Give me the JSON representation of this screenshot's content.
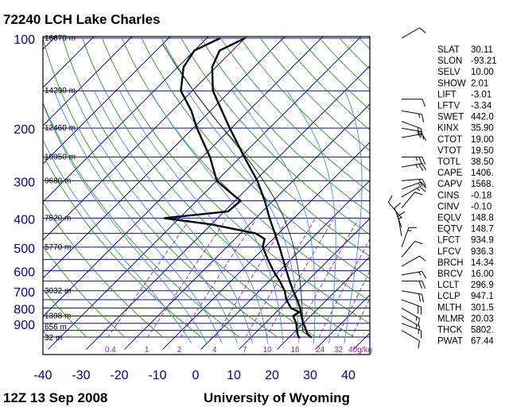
{
  "header": {
    "title": "72240 LCH Lake Charles",
    "date": "12Z 13 Sep 2008",
    "source": "University of Wyoming"
  },
  "colors": {
    "isobar": "#0b0b8c",
    "isotherm": "#0b0b8c",
    "dry_adiabat": "#2a9a2a",
    "moist_adiabat": "#4a8acf",
    "mixing_ratio": "#a020a0",
    "sounding": "#000000",
    "parcel": "#000000",
    "axis_text": "#00008b"
  },
  "chart_data": {
    "type": "skew-t",
    "pressure_ticks": [
      100,
      200,
      300,
      400,
      500,
      600,
      700,
      800,
      900
    ],
    "temperature_ticks": [
      -40,
      -30,
      -20,
      -10,
      0,
      10,
      20,
      30,
      40
    ],
    "xlim": [
      -40,
      45
    ],
    "plim": [
      100,
      1005
    ],
    "height_labels": [
      {
        "p": 100,
        "text": "16670 m"
      },
      {
        "p": 150,
        "text": "14290 m"
      },
      {
        "p": 200,
        "text": "12460 m"
      },
      {
        "p": 250,
        "text": "10950 m"
      },
      {
        "p": 300,
        "text": "9680 m"
      },
      {
        "p": 400,
        "text": "7520 m"
      },
      {
        "p": 500,
        "text": "5770 m"
      },
      {
        "p": 700,
        "text": "3032 m"
      },
      {
        "p": 850,
        "text": "1398 m"
      },
      {
        "p": 925,
        "text": "656 m"
      },
      {
        "p": 1005,
        "text": "32 m"
      }
    ],
    "mixing_ratio_labels": [
      "0.4",
      "1",
      "2",
      "4",
      "7",
      "10",
      "16",
      "24",
      "32",
      "40g/kg"
    ],
    "mixing_ratio_values": [
      0.4,
      1,
      2,
      4,
      7,
      10,
      16,
      24,
      32,
      40
    ],
    "temperature": [
      {
        "p": 1005,
        "t": 26.0
      },
      {
        "p": 1000,
        "t": 25.6
      },
      {
        "p": 975,
        "t": 23.8
      },
      {
        "p": 925,
        "t": 21.4
      },
      {
        "p": 900,
        "t": 20.0
      },
      {
        "p": 850,
        "t": 17.6
      },
      {
        "p": 800,
        "t": 15.2
      },
      {
        "p": 750,
        "t": 12.2
      },
      {
        "p": 700,
        "t": 8.8
      },
      {
        "p": 650,
        "t": 5.4
      },
      {
        "p": 600,
        "t": 1.8
      },
      {
        "p": 550,
        "t": -2.0
      },
      {
        "p": 500,
        "t": -6.2
      },
      {
        "p": 450,
        "t": -11.0
      },
      {
        "p": 400,
        "t": -16.4
      },
      {
        "p": 350,
        "t": -22.2
      },
      {
        "p": 300,
        "t": -29.4
      },
      {
        "p": 250,
        "t": -39.0
      },
      {
        "p": 200,
        "t": -50.4
      },
      {
        "p": 175,
        "t": -57.0
      },
      {
        "p": 150,
        "t": -64.6
      },
      {
        "p": 125,
        "t": -71.0
      },
      {
        "p": 110,
        "t": -73.4
      },
      {
        "p": 100,
        "t": -70.0
      }
    ],
    "dewpoint": [
      {
        "p": 1005,
        "t": 23.0
      },
      {
        "p": 1000,
        "t": 22.4
      },
      {
        "p": 975,
        "t": 21.2
      },
      {
        "p": 925,
        "t": 19.2
      },
      {
        "p": 900,
        "t": 18.2
      },
      {
        "p": 850,
        "t": 15.4
      },
      {
        "p": 825,
        "t": 16.0
      },
      {
        "p": 800,
        "t": 12.8
      },
      {
        "p": 750,
        "t": 9.4
      },
      {
        "p": 700,
        "t": 6.6
      },
      {
        "p": 650,
        "t": 2.8
      },
      {
        "p": 600,
        "t": -1.6
      },
      {
        "p": 550,
        "t": -6.0
      },
      {
        "p": 500,
        "t": -10.6
      },
      {
        "p": 470,
        "t": -12.2
      },
      {
        "p": 450,
        "t": -16.0
      },
      {
        "p": 420,
        "t": -30.0
      },
      {
        "p": 400,
        "t": -44.0
      },
      {
        "p": 380,
        "t": -29.0
      },
      {
        "p": 350,
        "t": -28.5
      },
      {
        "p": 330,
        "t": -33.0
      },
      {
        "p": 300,
        "t": -40.0
      },
      {
        "p": 250,
        "t": -48.0
      },
      {
        "p": 200,
        "t": -59.0
      },
      {
        "p": 175,
        "t": -65.0
      },
      {
        "p": 150,
        "t": -73.0
      },
      {
        "p": 125,
        "t": -78.5
      },
      {
        "p": 110,
        "t": -80.0
      },
      {
        "p": 100,
        "t": -76.5
      }
    ],
    "wind_barbs": [
      {
        "p": 100,
        "dir": 60,
        "spd": 10
      },
      {
        "p": 160,
        "dir": 90,
        "spd": 10
      },
      {
        "p": 175,
        "dir": 100,
        "spd": 15
      },
      {
        "p": 190,
        "dir": 110,
        "spd": 20
      },
      {
        "p": 200,
        "dir": 100,
        "spd": 15
      },
      {
        "p": 215,
        "dir": 80,
        "spd": 15
      },
      {
        "p": 250,
        "dir": 90,
        "spd": 25
      },
      {
        "p": 270,
        "dir": 80,
        "spd": 25
      },
      {
        "p": 300,
        "dir": 85,
        "spd": 20
      },
      {
        "p": 320,
        "dir": 70,
        "spd": 15
      },
      {
        "p": 340,
        "dir": 60,
        "spd": 15
      },
      {
        "p": 370,
        "dir": 40,
        "spd": 10
      },
      {
        "p": 400,
        "dir": 320,
        "spd": 10
      },
      {
        "p": 430,
        "dir": 340,
        "spd": 10
      },
      {
        "p": 460,
        "dir": 350,
        "spd": 15
      },
      {
        "p": 500,
        "dir": 20,
        "spd": 15
      },
      {
        "p": 540,
        "dir": 40,
        "spd": 10
      },
      {
        "p": 580,
        "dir": 60,
        "spd": 10
      },
      {
        "p": 620,
        "dir": 80,
        "spd": 15
      },
      {
        "p": 650,
        "dir": 90,
        "spd": 20
      },
      {
        "p": 700,
        "dir": 100,
        "spd": 20
      },
      {
        "p": 750,
        "dir": 110,
        "spd": 20
      },
      {
        "p": 800,
        "dir": 120,
        "spd": 15
      },
      {
        "p": 850,
        "dir": 120,
        "spd": 15
      },
      {
        "p": 900,
        "dir": 110,
        "spd": 10
      },
      {
        "p": 950,
        "dir": 120,
        "spd": 10
      }
    ]
  },
  "indices": [
    {
      "name": "SLAT",
      "value": "30.11"
    },
    {
      "name": "SLON",
      "value": "-93.21"
    },
    {
      "name": "SELV",
      "value": "10.00"
    },
    {
      "name": "SHOW",
      "value": "2.01"
    },
    {
      "name": "LIFT",
      "value": "-3.01"
    },
    {
      "name": "LFTV",
      "value": "-3.34"
    },
    {
      "name": "SWET",
      "value": "442.0"
    },
    {
      "name": "KINX",
      "value": "35.90"
    },
    {
      "name": "CTOT",
      "value": "19.00"
    },
    {
      "name": "VTOT",
      "value": "19.50"
    },
    {
      "name": "TOTL",
      "value": "38.50"
    },
    {
      "name": "CAPE",
      "value": "1406."
    },
    {
      "name": "CAPV",
      "value": "1568."
    },
    {
      "name": "CINS",
      "value": "-0.18"
    },
    {
      "name": "CINV",
      "value": "-0.10"
    },
    {
      "name": "EQLV",
      "value": "148.8"
    },
    {
      "name": "EQTV",
      "value": "148.7"
    },
    {
      "name": "LFCT",
      "value": "934.9"
    },
    {
      "name": "LFCV",
      "value": "936.3"
    },
    {
      "name": "BRCH",
      "value": "14.34"
    },
    {
      "name": "BRCV",
      "value": "16.00"
    },
    {
      "name": "LCLT",
      "value": "296.9"
    },
    {
      "name": "LCLP",
      "value": "947.1"
    },
    {
      "name": "MLTH",
      "value": "301.5"
    },
    {
      "name": "MLMR",
      "value": "20.03"
    },
    {
      "name": "THCK",
      "value": "5802."
    },
    {
      "name": "PWAT",
      "value": "67.44"
    }
  ]
}
